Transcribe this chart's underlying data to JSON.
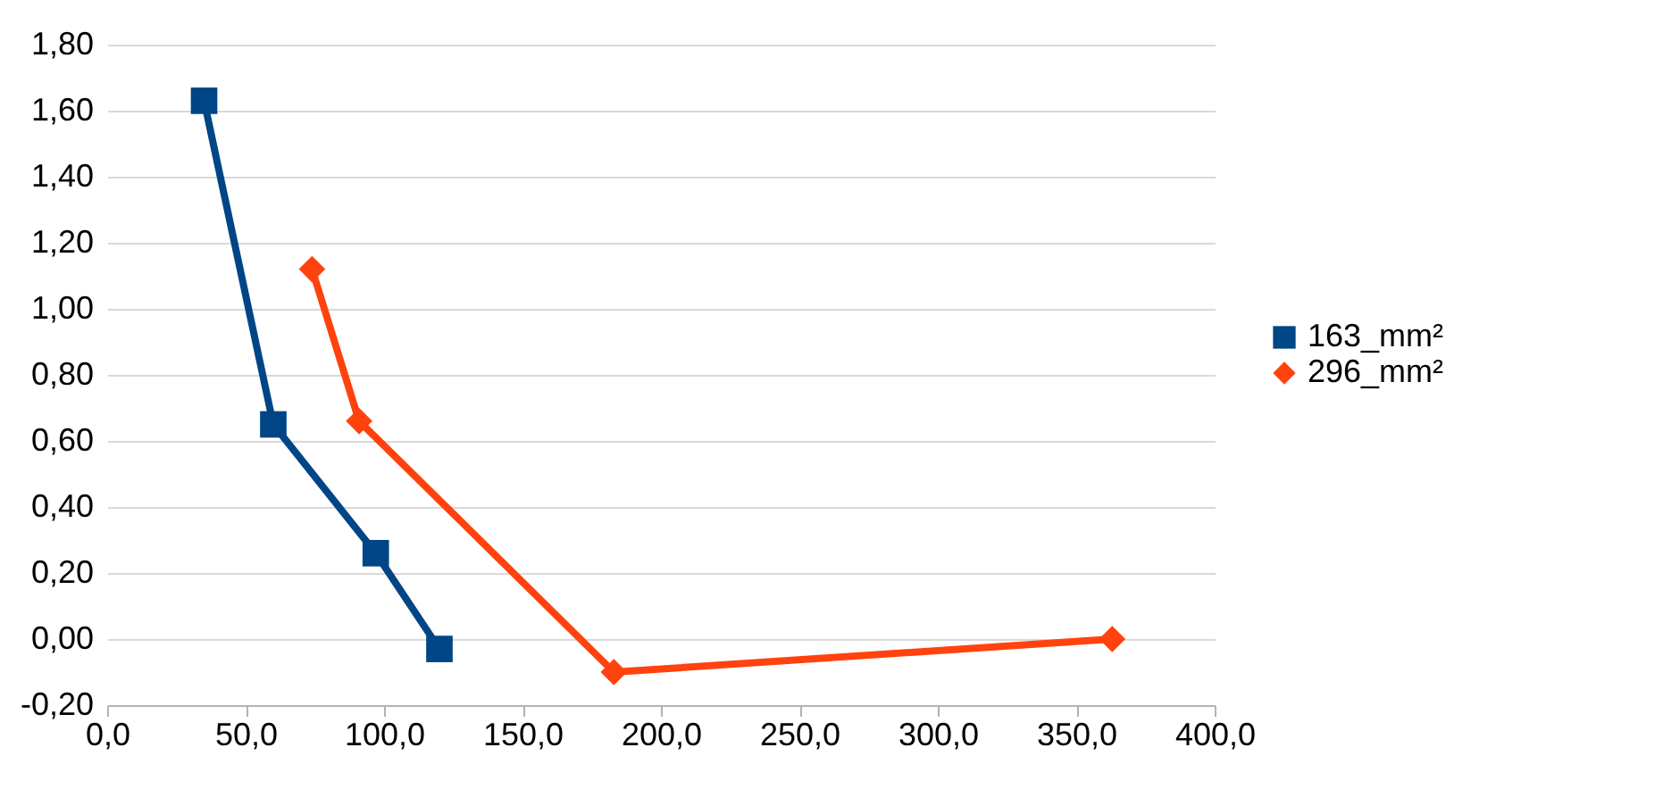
{
  "chart_data": {
    "type": "line",
    "grid": "y",
    "legend": "right",
    "line_style": "solid",
    "xlim": [
      0,
      400
    ],
    "xticks": [
      {
        "value": 0,
        "label": "0,0"
      },
      {
        "value": 50,
        "label": "50,0"
      },
      {
        "value": 100,
        "label": "100,0"
      },
      {
        "value": 150,
        "label": "150,0"
      },
      {
        "value": 200,
        "label": "200,0"
      },
      {
        "value": 250,
        "label": "250,0"
      },
      {
        "value": 300,
        "label": "300,0"
      },
      {
        "value": 350,
        "label": "350,0"
      },
      {
        "value": 400,
        "label": "400,0"
      }
    ],
    "ylim": [
      -0.2,
      1.8
    ],
    "yticks": [
      {
        "value": -0.2,
        "label": "-0,20"
      },
      {
        "value": 0,
        "label": "0,00"
      },
      {
        "value": 0.2,
        "label": "0,20"
      },
      {
        "value": 0.4,
        "label": "0,40"
      },
      {
        "value": 0.6,
        "label": "0,60"
      },
      {
        "value": 0.8,
        "label": "0,80"
      },
      {
        "value": 1.0,
        "label": "1,00"
      },
      {
        "value": 1.2,
        "label": "1,20"
      },
      {
        "value": 1.4,
        "label": "1,40"
      },
      {
        "value": 1.6,
        "label": "1,60"
      },
      {
        "value": 1.8,
        "label": "1,80"
      }
    ],
    "series": [
      {
        "name": "163_mm²",
        "color": "#004586",
        "marker": "square",
        "x": [
          35,
          60,
          97,
          120
        ],
        "values": [
          1.63,
          0.65,
          0.26,
          -0.03
        ]
      },
      {
        "name": "296_mm²",
        "color": "#ff420e",
        "marker": "diamond",
        "x": [
          74,
          91,
          183,
          363
        ],
        "values": [
          1.12,
          0.66,
          -0.1,
          0.0
        ]
      }
    ]
  }
}
